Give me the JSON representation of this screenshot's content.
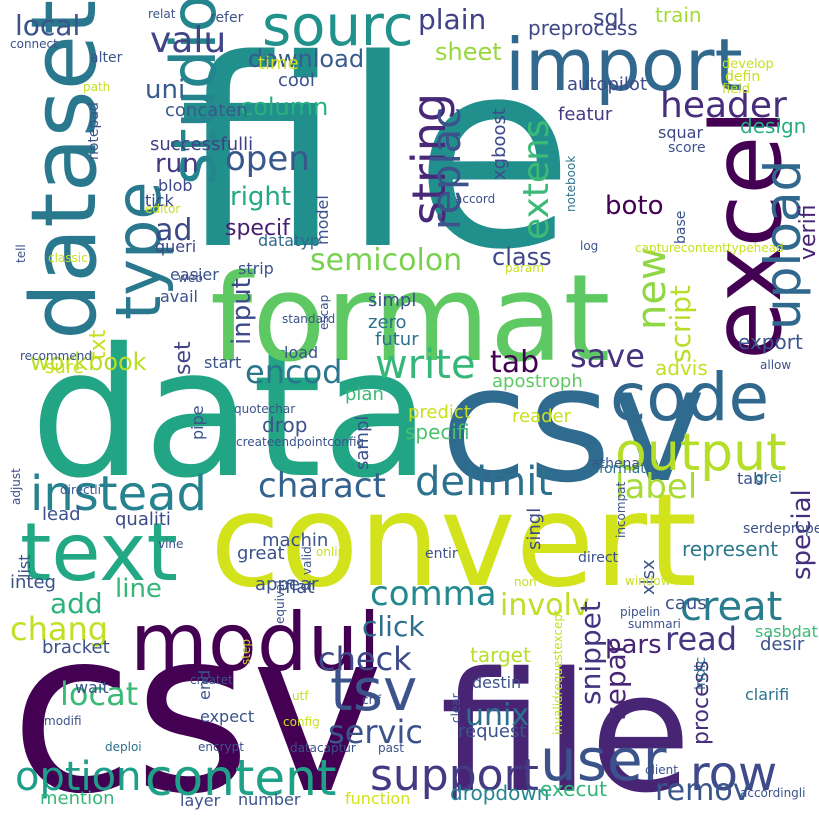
{
  "words": [
    {
      "text": "file",
      "color": "#21908d"
    },
    {
      "text": "csv",
      "color": "#440154"
    },
    {
      "text": "data",
      "color": "#21a585"
    },
    {
      "text": "csv",
      "color": "#2f6b8e"
    },
    {
      "text": "convert",
      "color": "#d2e21b"
    },
    {
      "text": "file",
      "color": "#482475"
    },
    {
      "text": "format",
      "color": "#5ec962"
    },
    {
      "text": "import",
      "color": "#31688e"
    },
    {
      "text": "excel",
      "color": "#440154"
    },
    {
      "text": "dataset",
      "color": "#2a788e"
    },
    {
      "text": "text",
      "color": "#22a884"
    },
    {
      "text": "modul",
      "color": "#440154"
    },
    {
      "text": "code",
      "color": "#31688e"
    },
    {
      "text": "output",
      "color": "#b5de2b"
    },
    {
      "text": "content",
      "color": "#1fa187"
    },
    {
      "text": "user",
      "color": "#3b528b"
    },
    {
      "text": "type",
      "color": "#2a788e"
    },
    {
      "text": "studio",
      "color": "#25858e"
    },
    {
      "text": "sourc",
      "color": "#21918c"
    },
    {
      "text": "upload",
      "color": "#31688e"
    },
    {
      "text": "string",
      "color": "#482878"
    },
    {
      "text": "instead",
      "color": "#26828e"
    },
    {
      "text": "tsv",
      "color": "#3b528b"
    },
    {
      "text": "row",
      "color": "#3e4a89"
    },
    {
      "text": "support",
      "color": "#443983"
    },
    {
      "text": "option",
      "color": "#1f9e89"
    },
    {
      "text": "delimit",
      "color": "#2c728e"
    },
    {
      "text": "charact",
      "color": "#34618d"
    },
    {
      "text": "creat",
      "color": "#287c8e"
    },
    {
      "text": "write",
      "color": "#35b779"
    },
    {
      "text": "header",
      "color": "#472d7b"
    },
    {
      "text": "valu",
      "color": "#414487"
    },
    {
      "text": "comma",
      "color": "#23898e"
    },
    {
      "text": "involv",
      "color": "#bddf26"
    },
    {
      "text": "chang",
      "color": "#c2df23"
    },
    {
      "text": "servic",
      "color": "#3b528b"
    },
    {
      "text": "check",
      "color": "#3e4989"
    },
    {
      "text": "unix",
      "color": "#2d708e"
    },
    {
      "text": "replac",
      "color": "#3b528b"
    },
    {
      "text": "new",
      "color": "#8fd744"
    },
    {
      "text": "label",
      "color": "#a8db34"
    },
    {
      "text": "extens",
      "color": "#3aba76"
    },
    {
      "text": "save",
      "color": "#46337e"
    },
    {
      "text": "encod",
      "color": "#2a768e"
    },
    {
      "text": "open",
      "color": "#38588c"
    },
    {
      "text": "read",
      "color": "#453882"
    },
    {
      "text": "add",
      "color": "#2db27d"
    },
    {
      "text": "semicolon",
      "color": "#7ad151"
    },
    {
      "text": "locat",
      "color": "#3aba76"
    },
    {
      "text": "click",
      "color": "#2e6e8e"
    },
    {
      "text": "remov",
      "color": "#3a548c"
    },
    {
      "text": "snippet",
      "color": "#453581"
    },
    {
      "text": "pars",
      "color": "#482475"
    },
    {
      "text": "separ",
      "color": "#482475"
    },
    {
      "text": "special",
      "color": "#46307e"
    },
    {
      "text": "local",
      "color": "#3b528b"
    },
    {
      "text": "plain",
      "color": "#424086"
    },
    {
      "text": "download",
      "color": "#375b8d"
    },
    {
      "text": "sheet",
      "color": "#98d83e"
    },
    {
      "text": "column",
      "color": "#2ab07f"
    },
    {
      "text": "uni",
      "color": "#375b8d"
    },
    {
      "text": "right",
      "color": "#23a983"
    },
    {
      "text": "ad",
      "color": "#3e4989"
    },
    {
      "text": "run",
      "color": "#453882"
    },
    {
      "text": "specif",
      "color": "#481f70"
    },
    {
      "text": "boto",
      "color": "#440154"
    },
    {
      "text": "class",
      "color": "#3f4788"
    },
    {
      "text": "tab",
      "color": "#440154"
    },
    {
      "text": "script",
      "color": "#bade28"
    },
    {
      "text": "verifi",
      "color": "#482475"
    },
    {
      "text": "design",
      "color": "#25ac82"
    },
    {
      "text": "export",
      "color": "#3a548c"
    },
    {
      "text": "line",
      "color": "#35b779"
    },
    {
      "text": "process",
      "color": "#46307e"
    },
    {
      "text": "workbook",
      "color": "#bade28"
    },
    {
      "text": "set",
      "color": "#414487"
    },
    {
      "text": "input",
      "color": "#3e4989"
    },
    {
      "text": "txt",
      "color": "#c8e020"
    },
    {
      "text": "specifi",
      "color": "#4ac16d"
    },
    {
      "text": "target",
      "color": "#b8de29"
    },
    {
      "text": "advis",
      "color": "#c2df23"
    },
    {
      "text": "dropdown",
      "color": "#25858e"
    },
    {
      "text": "execut",
      "color": "#31b57b"
    },
    {
      "text": "represent",
      "color": "#2a788e"
    },
    {
      "text": "xlsx",
      "color": "#3b528b"
    },
    {
      "text": "sql",
      "color": "#3f4788"
    },
    {
      "text": "train",
      "color": "#a5db36"
    },
    {
      "text": "preprocess",
      "color": "#3f4788"
    },
    {
      "text": "time",
      "color": "#d0e11c"
    },
    {
      "text": "featur",
      "color": "#443983"
    },
    {
      "text": "autopilot",
      "color": "#3e4989"
    },
    {
      "text": "squar",
      "color": "#3e4989"
    },
    {
      "text": "score",
      "color": "#3b528b"
    },
    {
      "text": "xgboost",
      "color": "#3e4a89"
    },
    {
      "text": "apostroph",
      "color": "#5ec962"
    },
    {
      "text": "successfulli",
      "color": "#424086"
    },
    {
      "text": "concaten",
      "color": "#38598c"
    },
    {
      "text": "cool",
      "color": "#3b528b"
    },
    {
      "text": "blob",
      "color": "#3f4889"
    },
    {
      "text": "tick",
      "color": "#3e4989"
    },
    {
      "text": "model",
      "color": "#3b528b"
    },
    {
      "text": "datatyp",
      "color": "#31688e"
    },
    {
      "text": "strip",
      "color": "#3b528b"
    },
    {
      "text": "easier",
      "color": "#3b528b"
    },
    {
      "text": "queri",
      "color": "#3f4788"
    },
    {
      "text": "avail",
      "color": "#3b528b"
    },
    {
      "text": "simpl",
      "color": "#3b528b"
    },
    {
      "text": "zero",
      "color": "#2c728e"
    },
    {
      "text": "futur",
      "color": "#2c728e"
    },
    {
      "text": "load",
      "color": "#3b528b"
    },
    {
      "text": "start",
      "color": "#3b528b"
    },
    {
      "text": "sure",
      "color": "#c8e020"
    },
    {
      "text": "plan",
      "color": "#3aba76"
    },
    {
      "text": "drop",
      "color": "#3b528b"
    },
    {
      "text": "pipe",
      "color": "#3b528b"
    },
    {
      "text": "predict",
      "color": "#c8e020"
    },
    {
      "text": "reader",
      "color": "#c8e020"
    },
    {
      "text": "lead",
      "color": "#3b528b"
    },
    {
      "text": "qualiti",
      "color": "#3e4989"
    },
    {
      "text": "machin",
      "color": "#3b528b"
    },
    {
      "text": "great",
      "color": "#3b528b"
    },
    {
      "text": "appear",
      "color": "#3b528b"
    },
    {
      "text": "flat",
      "color": "#3b528b"
    },
    {
      "text": "caus",
      "color": "#3b528b"
    },
    {
      "text": "integ",
      "color": "#3b528b"
    },
    {
      "text": "bracket",
      "color": "#3b528b"
    },
    {
      "text": "list",
      "color": "#3b528b"
    },
    {
      "text": "wait",
      "color": "#3b528b"
    },
    {
      "text": "end",
      "color": "#3b528b"
    },
    {
      "text": "destin",
      "color": "#3b528b"
    },
    {
      "text": "request",
      "color": "#3b528b"
    },
    {
      "text": "expect",
      "color": "#3b528b"
    },
    {
      "text": "layer",
      "color": "#3b528b"
    },
    {
      "text": "number",
      "color": "#3b528b"
    },
    {
      "text": "function",
      "color": "#d2e21b"
    },
    {
      "text": "mention",
      "color": "#35b779"
    },
    {
      "text": "sasbdat",
      "color": "#3aba76"
    },
    {
      "text": "desir",
      "color": "#3b528b"
    },
    {
      "text": "indic",
      "color": "#2c728e"
    },
    {
      "text": "clarifi",
      "color": "#2c728e"
    },
    {
      "text": "singl",
      "color": "#3e4989"
    },
    {
      "text": "entir",
      "color": "#3b528b"
    },
    {
      "text": "direct",
      "color": "#3b528b"
    },
    {
      "text": "sampl",
      "color": "#3b528b"
    },
    {
      "text": "tabl",
      "color": "#3b528b"
    },
    {
      "text": "grei",
      "color": "#2c728e"
    },
    {
      "text": "athena",
      "color": "#3b528b"
    },
    {
      "text": "reformat",
      "color": "#2c728e"
    },
    {
      "text": "serdeproperti",
      "color": "#3b528b"
    },
    {
      "text": "relat",
      "color": "#3b528b"
    },
    {
      "text": "refer",
      "color": "#3b528b"
    },
    {
      "text": "connect",
      "color": "#3b528b"
    },
    {
      "text": "alter",
      "color": "#3b528b"
    },
    {
      "text": "path",
      "color": "#c8e020"
    },
    {
      "text": "notepad",
      "color": "#3b528b"
    },
    {
      "text": "editor",
      "color": "#c8e020"
    },
    {
      "text": "develop",
      "color": "#c8e020"
    },
    {
      "text": "defin",
      "color": "#c8e020"
    },
    {
      "text": "field",
      "color": "#c8e020"
    },
    {
      "text": "base",
      "color": "#3b528b"
    },
    {
      "text": "accord",
      "color": "#3b528b"
    },
    {
      "text": "notebook",
      "color": "#2c728e"
    },
    {
      "text": "log",
      "color": "#3b528b"
    },
    {
      "text": "capturecontenttypehead",
      "color": "#c8e020"
    },
    {
      "text": "param",
      "color": "#c8e020"
    },
    {
      "text": "tell",
      "color": "#3b528b"
    },
    {
      "text": "classic",
      "color": "#c8e020"
    },
    {
      "text": "web",
      "color": "#3b528b"
    },
    {
      "text": "standard",
      "color": "#3b528b"
    },
    {
      "text": "escap",
      "color": "#3b528b"
    },
    {
      "text": "allow",
      "color": "#3b528b"
    },
    {
      "text": "recommend",
      "color": "#3b528b"
    },
    {
      "text": "adjust",
      "color": "#3b528b"
    },
    {
      "text": "quotechar",
      "color": "#3b528b"
    },
    {
      "text": "createendpointconfig",
      "color": "#3b528b"
    },
    {
      "text": "directli",
      "color": "#3b528b"
    },
    {
      "text": "incompat",
      "color": "#3b528b"
    },
    {
      "text": "vine",
      "color": "#3b528b"
    },
    {
      "text": "onlin",
      "color": "#c8e020"
    },
    {
      "text": "non",
      "color": "#c8e020"
    },
    {
      "text": "valid",
      "color": "#3b528b"
    },
    {
      "text": "window",
      "color": "#c8e020"
    },
    {
      "text": "pipelin",
      "color": "#3b528b"
    },
    {
      "text": "equival",
      "color": "#3b528b"
    },
    {
      "text": "summari",
      "color": "#3b528b"
    },
    {
      "text": "step",
      "color": "#c8e020"
    },
    {
      "text": "createt",
      "color": "#3b528b"
    },
    {
      "text": "utf",
      "color": "#c8e020"
    },
    {
      "text": "config",
      "color": "#c8e020"
    },
    {
      "text": "modifi",
      "color": "#3b528b"
    },
    {
      "text": "clear",
      "color": "#3b528b"
    },
    {
      "text": "crlf",
      "color": "#3b528b"
    },
    {
      "text": "invalidrequestexcept",
      "color": "#c8e020"
    },
    {
      "text": "deploi",
      "color": "#2c728e"
    },
    {
      "text": "encrypt",
      "color": "#3b528b"
    },
    {
      "text": "datacaptur",
      "color": "#3b528b"
    },
    {
      "text": "past",
      "color": "#3b528b"
    },
    {
      "text": "client",
      "color": "#3b528b"
    },
    {
      "text": "accordingli",
      "color": "#3b528b"
    },
    {
      "text": "escapechar",
      "color": "#3b528b"
    },
    {
      "text": "sdk",
      "color": "#3b528b"
    },
    {
      "text": "treat",
      "color": "#3b528b"
    }
  ]
}
